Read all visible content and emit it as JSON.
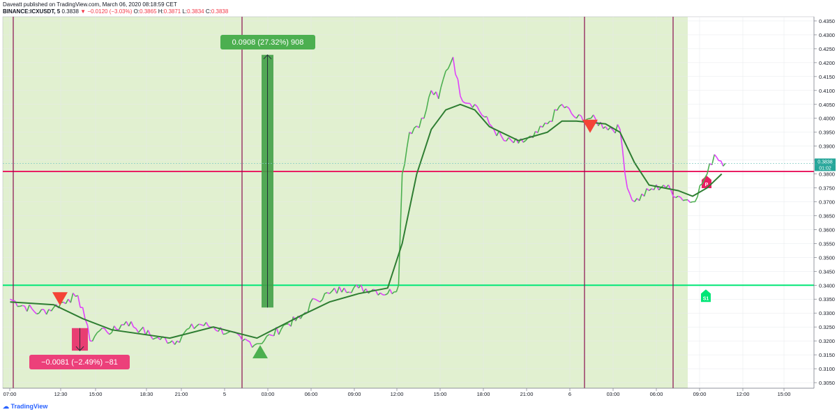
{
  "header": {
    "published_line": "Daveatt published on TradingView.com, March 06, 2020 08:18:59 CET",
    "symbol": "BINANCE:ICXUSDT, 5",
    "last": "0.3838",
    "change_arrow": "▼",
    "change": "−0.0120 (−3.03%)",
    "o_label": "O:",
    "o_value": "0.3865",
    "h_label": "H:",
    "h_value": "0.3871",
    "l_label": "L:",
    "l_value": "0.3834",
    "c_label": "C:",
    "c_value": "0.3838"
  },
  "footer": {
    "brand": "TradingView"
  },
  "colors": {
    "up": "#4caf50",
    "down": "#e040fb",
    "ma": "#2e7d32",
    "session_line": "#880e4f",
    "pivot_p": "#e91e63",
    "pivot_s1": "#00e676",
    "shade": "#dcedc8"
  },
  "chart_data": {
    "type": "line",
    "series": [
      {
        "points": [
          [
            "07:00",
            0.335
          ],
          [
            "09:00",
            0.33
          ],
          [
            "10:00",
            0.332
          ],
          [
            "11:00",
            0.335
          ],
          [
            "11:30",
            0.336
          ],
          [
            "12:00",
            0.332
          ],
          [
            "12:30",
            0.32
          ],
          [
            "13:00",
            0.323
          ],
          [
            "13:30",
            0.3245
          ],
          [
            "14:00",
            0.323
          ],
          [
            "15:00",
            0.327
          ],
          [
            "16:00",
            0.324
          ],
          [
            "17:00",
            0.321
          ],
          [
            "18:30",
            0.32
          ],
          [
            "19:00",
            0.323
          ],
          [
            "20:00",
            0.326
          ],
          [
            "21:00",
            0.325
          ],
          [
            "22:00",
            0.323
          ],
          [
            "23:00",
            0.32
          ],
          [
            "00:00",
            0.319
          ],
          [
            "01:00",
            0.322
          ],
          [
            "02:00",
            0.326
          ],
          [
            "03:00",
            0.328
          ],
          [
            "04:00",
            0.335
          ],
          [
            "05:00",
            0.337
          ],
          [
            "06:00",
            0.339
          ],
          [
            "07:00",
            0.339
          ],
          [
            "08:00",
            0.3385
          ],
          [
            "09:00",
            0.337
          ],
          [
            "09:45",
            0.34
          ],
          [
            "10:00",
            0.38
          ],
          [
            "10:30",
            0.395
          ],
          [
            "11:30",
            0.4
          ],
          [
            "12:00",
            0.41
          ],
          [
            "12:30",
            0.407
          ],
          [
            "13:00",
            0.417
          ],
          [
            "13:30",
            0.422
          ],
          [
            "14:00",
            0.408
          ],
          [
            "15:00",
            0.405
          ],
          [
            "16:00",
            0.398
          ],
          [
            "17:00",
            0.392
          ],
          [
            "18:00",
            0.391
          ],
          [
            "19:00",
            0.393
          ],
          [
            "20:00",
            0.398
          ],
          [
            "21:00",
            0.405
          ],
          [
            "22:00",
            0.4
          ],
          [
            "23:00",
            0.4
          ],
          [
            "00:00",
            0.397
          ],
          [
            "01:00",
            0.396
          ],
          [
            "01:30",
            0.375
          ],
          [
            "02:00",
            0.37
          ],
          [
            "03:00",
            0.374
          ],
          [
            "04:00",
            0.376
          ],
          [
            "05:00",
            0.372
          ],
          [
            "06:00",
            0.37
          ],
          [
            "07:00",
            0.38
          ],
          [
            "07:30",
            0.387
          ],
          [
            "08:15",
            0.3838
          ]
        ]
      },
      {
        "points": [
          [
            "07:00",
            0.334
          ],
          [
            "10:00",
            0.333
          ],
          [
            "12:00",
            0.328
          ],
          [
            "14:00",
            0.324
          ],
          [
            "18:00",
            0.321
          ],
          [
            "21:00",
            0.325
          ],
          [
            "00:00",
            0.321
          ],
          [
            "03:00",
            0.329
          ],
          [
            "05:00",
            0.334
          ],
          [
            "07:00",
            0.337
          ],
          [
            "09:00",
            0.339
          ],
          [
            "10:00",
            0.355
          ],
          [
            "11:00",
            0.38
          ],
          [
            "12:00",
            0.396
          ],
          [
            "13:00",
            0.403
          ],
          [
            "14:00",
            0.405
          ],
          [
            "15:00",
            0.403
          ],
          [
            "16:00",
            0.397
          ],
          [
            "18:00",
            0.392
          ],
          [
            "20:00",
            0.395
          ],
          [
            "21:00",
            0.399
          ],
          [
            "22:00",
            0.399
          ],
          [
            "00:00",
            0.398
          ],
          [
            "01:00",
            0.395
          ],
          [
            "02:00",
            0.384
          ],
          [
            "03:00",
            0.376
          ],
          [
            "04:00",
            0.375
          ],
          [
            "05:00",
            0.374
          ],
          [
            "06:00",
            0.372
          ],
          [
            "07:00",
            0.375
          ],
          [
            "08:00",
            0.38
          ]
        ]
      }
    ],
    "horizontal_levels": [
      {
        "value": 0.3809,
        "label": "P"
      },
      {
        "value": 0.34,
        "label": "S1"
      }
    ],
    "markers": [
      {
        "type": "arrow-down",
        "x": "11:30",
        "y": 0.335
      },
      {
        "type": "arrow-up",
        "x": "03:00",
        "y": 0.316
      },
      {
        "type": "arrow-down",
        "x": "01:00",
        "y": 0.397
      }
    ],
    "measurements": [
      {
        "label": "0.0908 (27.32%) 908",
        "from": 0.332,
        "to": 0.4228
      },
      {
        "label": "−0.0081 (−2.49%) −81",
        "from": 0.3246,
        "to": 0.3165
      }
    ],
    "y_ticks": [
      "0.4350",
      "0.4300",
      "0.4250",
      "0.4200",
      "0.4150",
      "0.4100",
      "0.4050",
      "0.4000",
      "0.3950",
      "0.3900",
      "0.3850",
      "0.3800",
      "0.3750",
      "0.3700",
      "0.3650",
      "0.3600",
      "0.3550",
      "0.3500",
      "0.3450",
      "0.3400",
      "0.3350",
      "0.3300",
      "0.3250",
      "0.3200",
      "0.3150",
      "0.3100",
      "0.3050"
    ],
    "x_ticks": [
      "07:00",
      "12:30",
      "15:00",
      "18:30",
      "21:00",
      "5",
      "03:00",
      "06:00",
      "09:00",
      "12:00",
      "15:00",
      "18:00",
      "21:00",
      "6",
      "03:00",
      "06:00",
      "09:00",
      "12:00",
      "15:00"
    ],
    "price_label": "0.3838",
    "countdown_label": "01:02",
    "ylim": [
      0.303,
      0.4365
    ]
  }
}
